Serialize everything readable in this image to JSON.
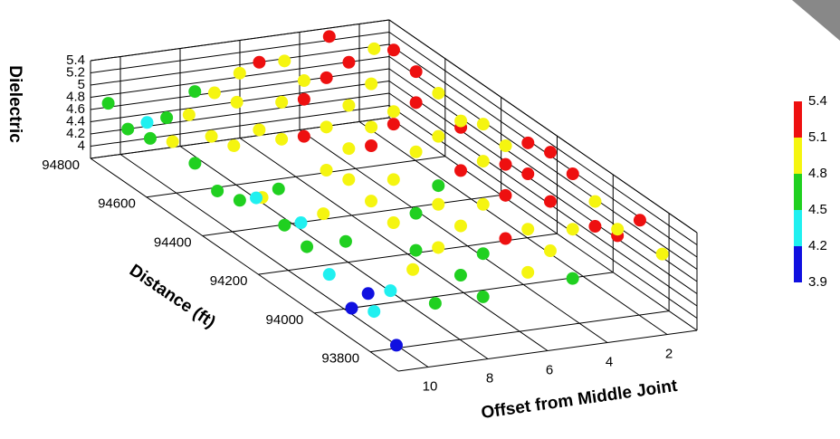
{
  "chart_data": {
    "type": "scatter3d",
    "zlabel": "Dielectric",
    "xlabel": "Distance (ft)",
    "ylabel": "Offset from Middle Joint",
    "xlim": [
      93700,
      94800
    ],
    "xticks": [
      93800,
      94000,
      94200,
      94400,
      94600,
      94800
    ],
    "ylim": [
      1,
      11
    ],
    "yticks": [
      2,
      4,
      6,
      8,
      10
    ],
    "zlim": [
      3.8,
      5.4
    ],
    "zticks": [
      4,
      4.2,
      4.4,
      4.6,
      4.8,
      5,
      5.2,
      5.4
    ],
    "grid": true,
    "colorbar": {
      "ticks": [
        3.9,
        4.2,
        4.5,
        4.8,
        5.1,
        5.4
      ],
      "colors": [
        "#1010e0",
        "#20f0f0",
        "#20d020",
        "#f5f510",
        "#ee1010"
      ]
    },
    "x": [
      93760,
      93840,
      93920,
      94000,
      94080,
      94160,
      94240,
      94320,
      94400,
      94480,
      94560,
      94640,
      94720,
      94790
    ],
    "series": [
      {
        "offset": 10.5,
        "values": [
          4.0,
          4.3,
          4.1,
          4.4,
          4.6,
          4.7,
          4.9,
          4.6,
          4.5,
          4.7,
          4.8,
          4.6,
          4.5,
          4.7
        ]
      },
      {
        "offset": 9.2,
        "values": [
          4.6,
          4.9,
          4.3,
          4.0,
          4.6,
          4.8,
          4.4,
          4.7,
          4.3,
          4.9,
          4.8,
          4.9,
          4.6,
          4.3
        ]
      },
      {
        "offset": 7.6,
        "values": [
          4.6,
          4.7,
          4.9,
          4.6,
          4.8,
          4.9,
          5.0,
          4.9,
          5.2,
          4.9,
          4.8,
          5.0,
          4.9,
          4.7
        ]
      },
      {
        "offset": 6.1,
        "values": [
          4.9,
          5.2,
          4.7,
          4.9,
          5.0,
          4.6,
          4.9,
          5.2,
          4.9,
          5.0,
          5.2,
          4.9,
          5.3,
          4.9
        ]
      },
      {
        "offset": 4.6,
        "values": [
          4.7,
          4.9,
          5.0,
          5.3,
          4.9,
          5.2,
          4.7,
          5.0,
          5.2,
          4.9,
          5.0,
          5.2,
          4.9,
          5.0
        ]
      },
      {
        "offset": 3.1,
        "values": [
          5.3,
          5.2,
          4.9,
          5.1,
          5.3,
          5.2,
          5.0,
          5.3,
          4.9,
          5.2,
          4.8,
          5.0,
          5.1,
          5.3
        ]
      },
      {
        "offset": 1.6,
        "values": [
          4.9,
          5.2,
          4.8,
          5.0,
          5.2,
          5.3,
          5.2,
          4.9,
          5.0,
          4.8,
          5.0,
          5.1,
          5.2,
          5.0
        ]
      }
    ]
  }
}
